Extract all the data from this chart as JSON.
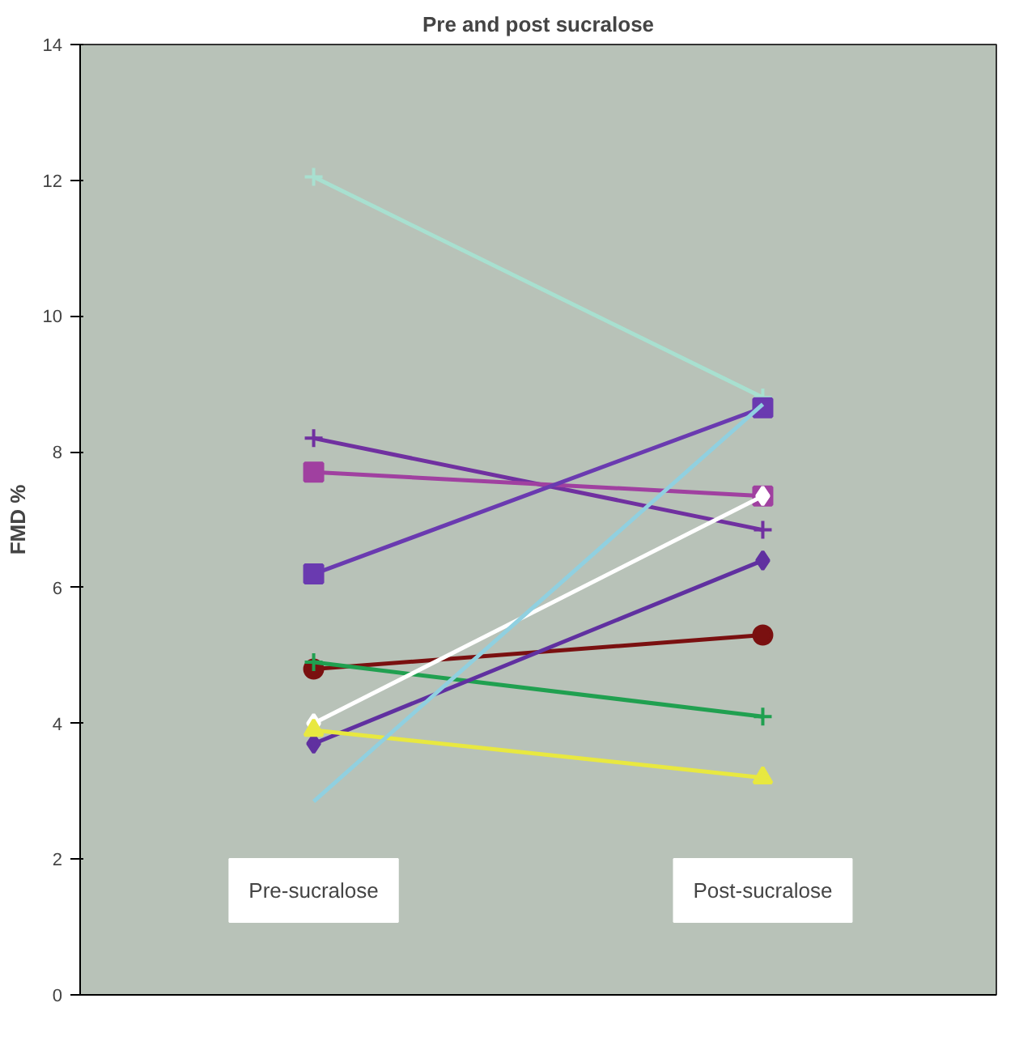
{
  "chart_data": {
    "type": "line",
    "title": "Pre and post sucralose",
    "ylabel": "FMD %",
    "categories": [
      null,
      null
    ],
    "ylim": [
      0,
      14
    ],
    "yticks": [
      0,
      2,
      4,
      6,
      8,
      10,
      12,
      14
    ],
    "grid": false,
    "tick_labels": "y",
    "annotations": [
      "Pre-sucralose",
      "Post-sucralose"
    ],
    "series": [
      {
        "color": "#a8e0d0",
        "marker": "cross",
        "values": [
          12.05,
          8.8
        ]
      },
      {
        "color": "#7030a0",
        "marker": "cross",
        "values": [
          8.2,
          6.85
        ]
      },
      {
        "color": "#a040a0",
        "marker": "square",
        "values": [
          7.7,
          7.35
        ]
      },
      {
        "color": "#6a3ab0",
        "marker": "square",
        "values": [
          6.2,
          8.65
        ]
      },
      {
        "color": "#7a1010",
        "marker": "circle",
        "values": [
          4.8,
          5.3
        ]
      },
      {
        "color": "#20a050",
        "marker": "cross",
        "values": [
          4.9,
          4.1
        ]
      },
      {
        "color": "#ffffff",
        "marker": "diamond",
        "values": [
          4.0,
          7.35
        ]
      },
      {
        "color": "#6030a0",
        "marker": "diamond",
        "values": [
          3.7,
          6.4
        ]
      },
      {
        "color": "#e8e840",
        "marker": "triangle",
        "values": [
          3.9,
          3.2
        ]
      },
      {
        "color": "#90d0e0",
        "marker": "none",
        "values": [
          2.85,
          8.7
        ]
      }
    ]
  }
}
